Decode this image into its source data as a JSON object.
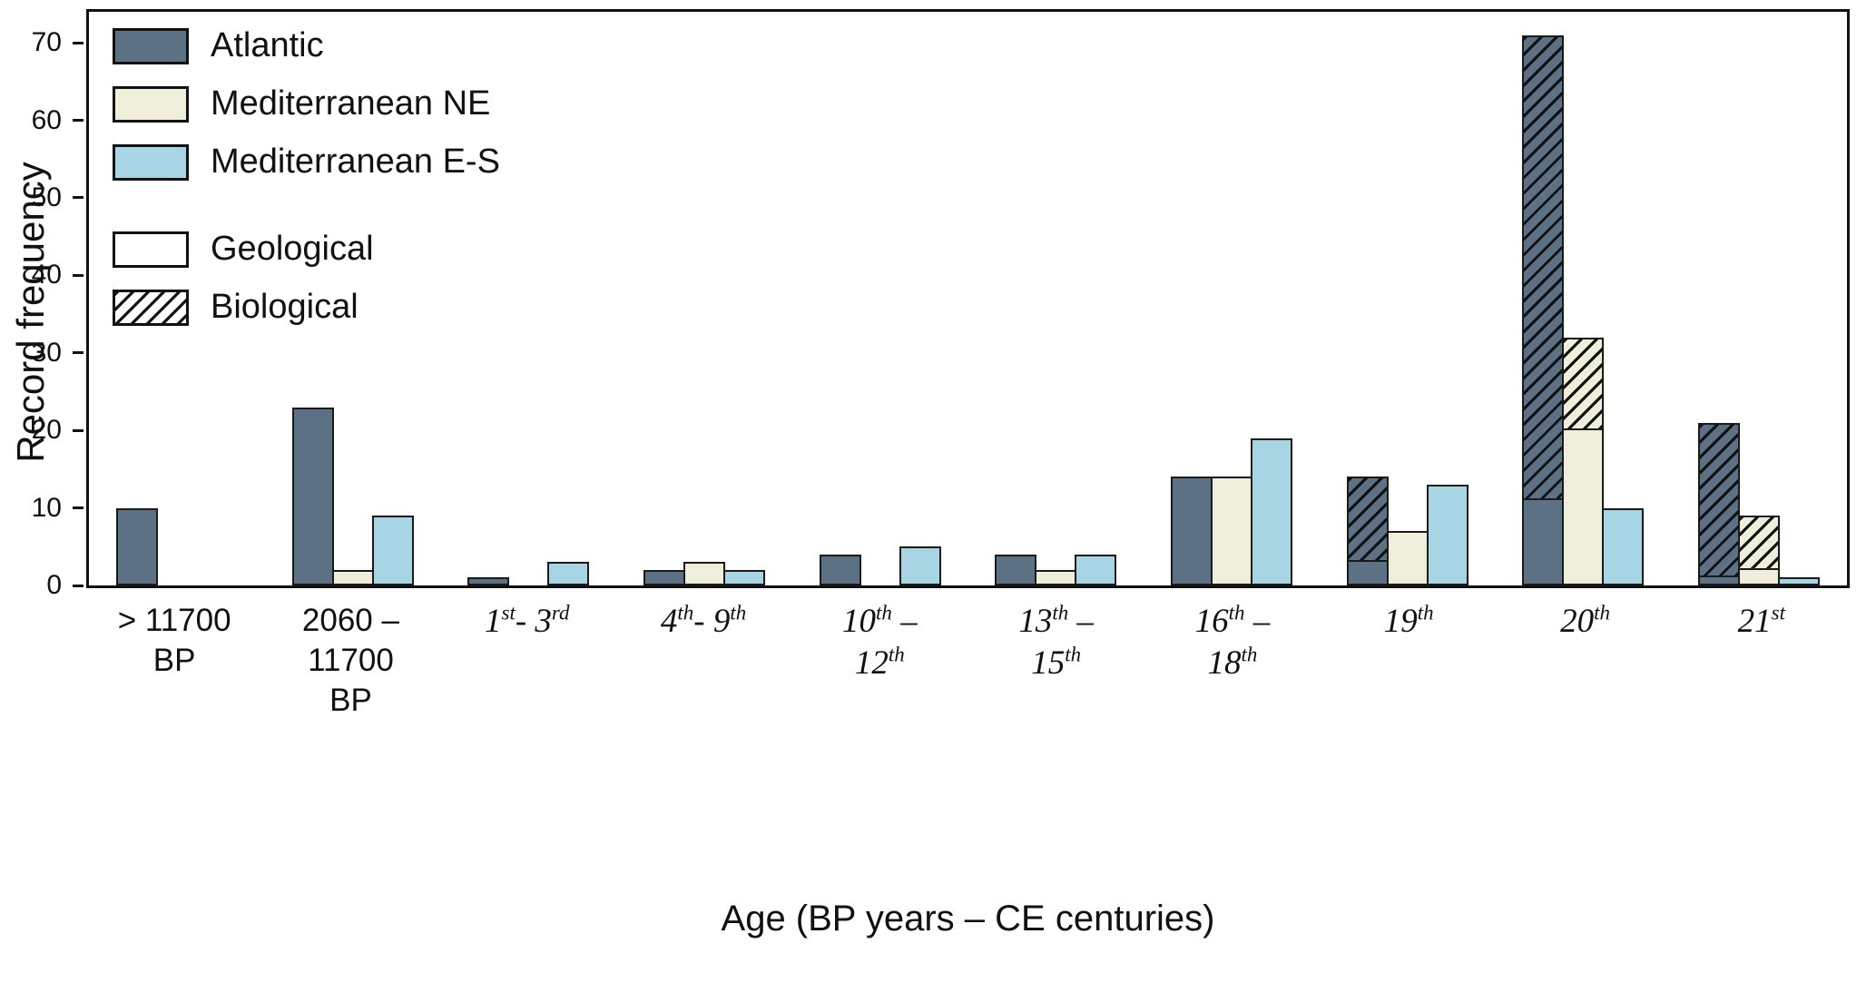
{
  "chart_data": {
    "type": "bar",
    "title": "",
    "xlabel": "Age (BP years – CE centuries)",
    "ylabel": "Record frequency",
    "ylim": [
      0,
      74
    ],
    "yticks": [
      0,
      10,
      20,
      30,
      40,
      50,
      60,
      70
    ],
    "grid": false,
    "legend_position": "upper-left-inside",
    "categories": [
      {
        "italic": false,
        "lines": [
          [
            {
              "t": "> 11700"
            }
          ],
          [
            {
              "t": "BP"
            }
          ]
        ]
      },
      {
        "italic": false,
        "lines": [
          [
            {
              "t": "2060 –"
            }
          ],
          [
            {
              "t": "11700"
            }
          ],
          [
            {
              "t": "BP"
            }
          ]
        ]
      },
      {
        "italic": true,
        "lines": [
          [
            {
              "t": "1"
            },
            {
              "t": "st",
              "sup": true
            },
            {
              "t": "- 3"
            },
            {
              "t": "rd",
              "sup": true
            }
          ]
        ]
      },
      {
        "italic": true,
        "lines": [
          [
            {
              "t": "4"
            },
            {
              "t": "th",
              "sup": true
            },
            {
              "t": "- 9"
            },
            {
              "t": "th",
              "sup": true
            }
          ]
        ]
      },
      {
        "italic": true,
        "lines": [
          [
            {
              "t": "10"
            },
            {
              "t": "th",
              "sup": true
            },
            {
              "t": " –"
            }
          ],
          [
            {
              "t": "12"
            },
            {
              "t": "th",
              "sup": true
            }
          ]
        ]
      },
      {
        "italic": true,
        "lines": [
          [
            {
              "t": "13"
            },
            {
              "t": "th",
              "sup": true
            },
            {
              "t": " –"
            }
          ],
          [
            {
              "t": "15"
            },
            {
              "t": "th",
              "sup": true
            }
          ]
        ]
      },
      {
        "italic": true,
        "lines": [
          [
            {
              "t": "16"
            },
            {
              "t": "th",
              "sup": true
            },
            {
              "t": " –"
            }
          ],
          [
            {
              "t": "18"
            },
            {
              "t": "th",
              "sup": true
            }
          ]
        ]
      },
      {
        "italic": true,
        "lines": [
          [
            {
              "t": "19"
            },
            {
              "t": "th",
              "sup": true
            }
          ]
        ]
      },
      {
        "italic": true,
        "lines": [
          [
            {
              "t": "20"
            },
            {
              "t": "th",
              "sup": true
            }
          ]
        ]
      },
      {
        "italic": true,
        "lines": [
          [
            {
              "t": "21"
            },
            {
              "t": "st",
              "sup": true
            }
          ]
        ]
      }
    ],
    "series": [
      {
        "name": "Atlantic",
        "color": "#5d7185",
        "geological": [
          10,
          23,
          1,
          2,
          4,
          4,
          14,
          3,
          11,
          1
        ],
        "biological": [
          0,
          0,
          0,
          0,
          0,
          0,
          0,
          11,
          60,
          20
        ]
      },
      {
        "name": "Mediterranean NE",
        "color": "#eeeedb",
        "geological": [
          0,
          2,
          0,
          3,
          0,
          2,
          14,
          7,
          20,
          2
        ],
        "biological": [
          0,
          0,
          0,
          0,
          0,
          0,
          0,
          0,
          12,
          7
        ]
      },
      {
        "name": "Mediterranean E-S",
        "color": "#a7d5e3",
        "geological": [
          0,
          9,
          3,
          2,
          5,
          4,
          19,
          13,
          10,
          1
        ],
        "biological": [
          0,
          0,
          0,
          0,
          0,
          0,
          0,
          0,
          0,
          0
        ]
      }
    ],
    "legend": [
      {
        "label": "Atlantic",
        "fill": "#5d7185",
        "hatch": false,
        "group": "region"
      },
      {
        "label": "Mediterranean NE",
        "fill": "#eeeedb",
        "hatch": false,
        "group": "region"
      },
      {
        "label": "Mediterranean E-S",
        "fill": "#a7d5e3",
        "hatch": false,
        "group": "region"
      },
      {
        "label": "Geological",
        "fill": "#ffffff",
        "hatch": false,
        "group": "record-type"
      },
      {
        "label": "Biological",
        "fill": "#ffffff",
        "hatch": true,
        "group": "record-type"
      }
    ],
    "hatch_color": "#111111",
    "frame_color": "#111111"
  },
  "axes": {
    "x_title": "Age (BP years – CE centuries)",
    "y_title": "Record frequency"
  }
}
